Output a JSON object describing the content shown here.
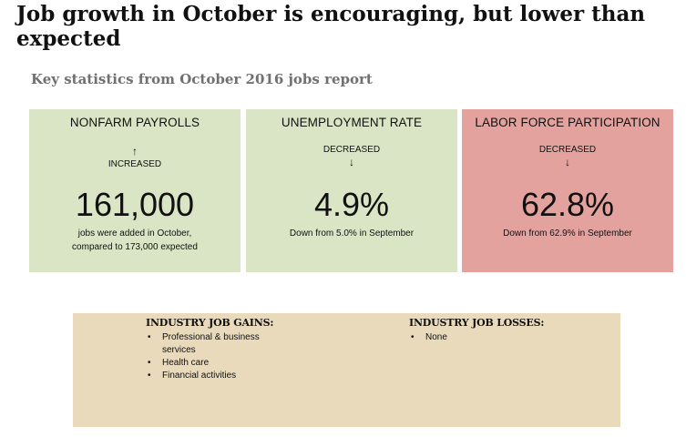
{
  "title": "Job growth in October is encouraging, but lower than expected",
  "subtitle": "Key statistics from October 2016 jobs report",
  "cards": [
    {
      "heading": "NONFARM PAYROLLS",
      "status": "INCREASED",
      "arrow": "up-arrow-icon",
      "value": "161,000",
      "note_line1": "jobs were added in October,",
      "note_line2": "compared to 173,000 expected",
      "color": "#d9e5c4"
    },
    {
      "heading": "UNEMPLOYMENT RATE",
      "status": "DECREASED",
      "arrow": "down-arrow-icon",
      "value": "4.9%",
      "note_line1": "Down from 5.0% in September",
      "color": "#d9e5c4"
    },
    {
      "heading": "LABOR FORCE PARTICIPATION",
      "status": "DECREASED",
      "arrow": "down-arrow-icon",
      "value": "62.8%",
      "note_line1": "Down from 62.9% in September",
      "color": "#e3a29e"
    }
  ],
  "industry": {
    "gains_heading": "INDUSTRY JOB GAINS:",
    "gains": [
      "Professional & business",
      "services",
      "Health care",
      "Financial activities"
    ],
    "losses_heading": "INDUSTRY JOB LOSSES:",
    "losses": [
      "None"
    ],
    "color": "#e8dabb"
  }
}
